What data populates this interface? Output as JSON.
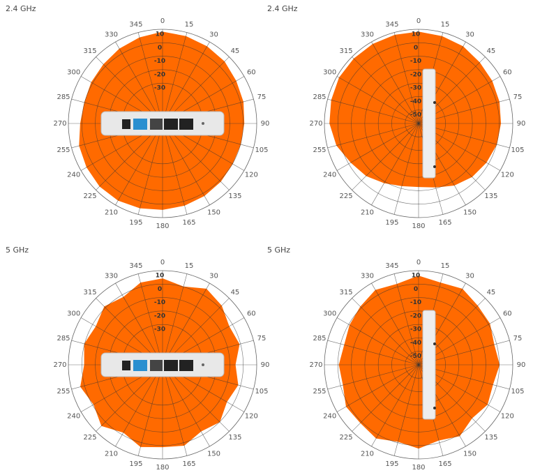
{
  "chart_data": [
    {
      "type": "polar",
      "title": "2.4 GHz",
      "color": "#ff6a00",
      "x": [
        0,
        15,
        30,
        45,
        60,
        75,
        90,
        105,
        120,
        135,
        150,
        165,
        180,
        195,
        210,
        225,
        240,
        255,
        270,
        285,
        300,
        315,
        330,
        345
      ],
      "values": [
        8,
        7,
        6,
        5,
        3,
        2,
        0.5,
        0,
        0,
        1,
        2,
        3,
        4,
        5,
        6,
        6,
        5,
        4,
        1,
        0,
        1,
        2,
        4,
        6
      ],
      "xticks": [
        0,
        15,
        30,
        45,
        60,
        75,
        90,
        105,
        120,
        135,
        150,
        165,
        180,
        195,
        210,
        225,
        240,
        255,
        270,
        285,
        300,
        315,
        330,
        345
      ],
      "ylim": [
        -60,
        10
      ],
      "yticks": [
        10,
        0,
        -10,
        -20,
        -30
      ]
    },
    {
      "type": "polar",
      "title": "2.4 GHz",
      "color": "#ff6a00",
      "x": [
        0,
        15,
        30,
        45,
        60,
        75,
        90,
        105,
        120,
        135,
        150,
        165,
        180,
        195,
        210,
        225,
        240,
        255,
        270,
        285,
        300,
        315,
        330,
        345
      ],
      "values": [
        8,
        7,
        6,
        4,
        3,
        2,
        1,
        0,
        -2,
        -4,
        -7,
        -11,
        -13,
        -12,
        -9,
        -5,
        -2,
        3,
        6,
        7,
        8,
        8,
        8,
        8
      ],
      "xticks": [
        0,
        15,
        30,
        45,
        60,
        75,
        90,
        105,
        120,
        135,
        150,
        165,
        180,
        195,
        210,
        225,
        240,
        255,
        270,
        285,
        300,
        315,
        330,
        345
      ],
      "ylim": [
        -60,
        10
      ],
      "yticks": [
        10,
        0,
        -10,
        -20,
        -30,
        -40,
        -50
      ]
    },
    {
      "type": "polar",
      "title": "5 GHz",
      "color": "#ff6a00",
      "x": [
        0,
        15,
        30,
        45,
        60,
        75,
        90,
        105,
        120,
        135,
        150,
        165,
        180,
        195,
        210,
        225,
        240,
        255,
        270,
        285,
        300,
        315,
        330,
        345
      ],
      "values": [
        4,
        0,
        5,
        2,
        -3,
        -1,
        -6,
        -2,
        -5,
        0,
        -3,
        2,
        1,
        3,
        -2,
        4,
        -1,
        3,
        -2,
        0,
        -3,
        1,
        -2,
        3
      ],
      "xticks": [
        0,
        15,
        30,
        45,
        60,
        75,
        90,
        105,
        120,
        135,
        150,
        165,
        180,
        195,
        210,
        225,
        240,
        255,
        270,
        285,
        300,
        315,
        330,
        345
      ],
      "ylim": [
        -60,
        10
      ],
      "yticks": [
        10,
        0,
        -10,
        -20,
        -30
      ]
    },
    {
      "type": "polar",
      "title": "5 GHz",
      "color": "#ff6a00",
      "x": [
        0,
        15,
        30,
        45,
        60,
        75,
        90,
        105,
        120,
        135,
        150,
        165,
        180,
        195,
        210,
        225,
        240,
        255,
        270,
        285,
        300,
        315,
        330,
        345
      ],
      "values": [
        6,
        3,
        5,
        2,
        1,
        -2,
        0,
        -3,
        -1,
        -4,
        1,
        -2,
        2,
        -1,
        3,
        1,
        2,
        -2,
        -1,
        -3,
        -1,
        1,
        4,
        2
      ],
      "xticks": [
        0,
        15,
        30,
        45,
        60,
        75,
        90,
        105,
        120,
        135,
        150,
        165,
        180,
        195,
        210,
        225,
        240,
        255,
        270,
        285,
        300,
        315,
        330,
        345
      ],
      "ylim": [
        -60,
        10
      ],
      "yticks": [
        10,
        0,
        -10,
        -20,
        -30,
        -40,
        -50
      ]
    }
  ]
}
